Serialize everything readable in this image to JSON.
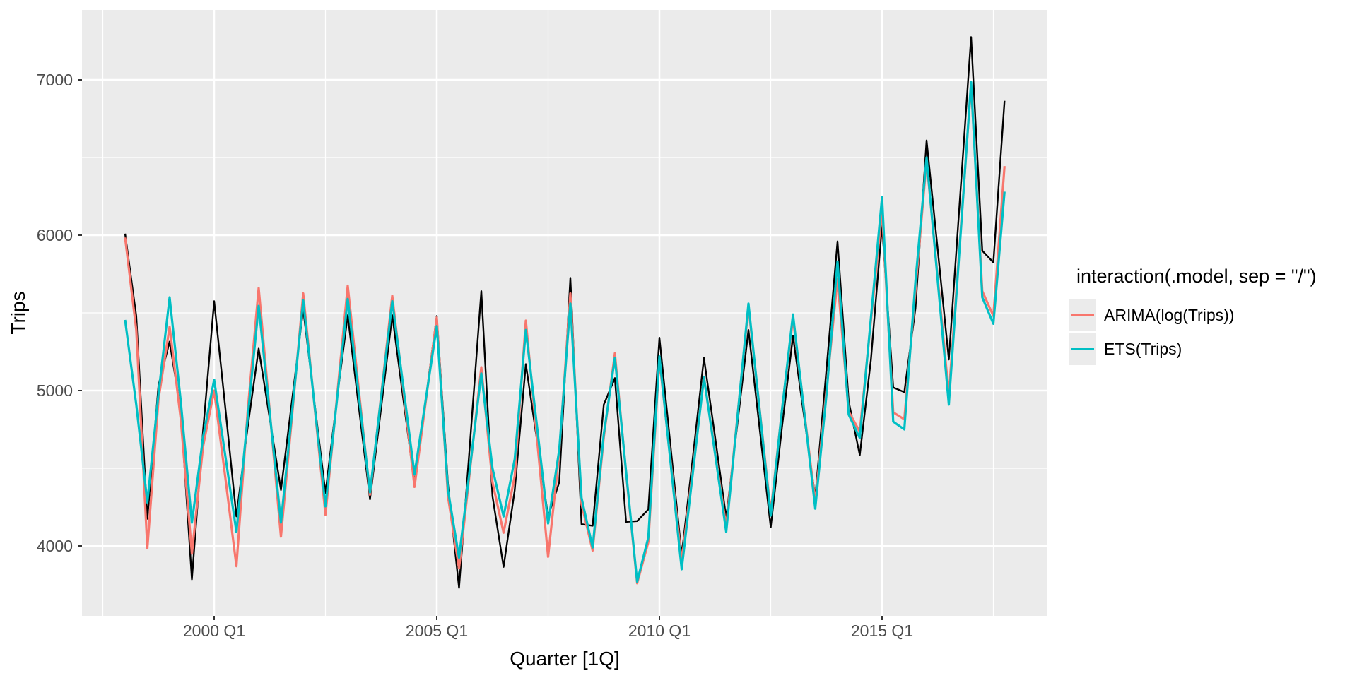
{
  "chart_data": {
    "type": "line",
    "xlabel": "Quarter [1Q]",
    "ylabel": "Trips",
    "panel_background": "#EBEBEB",
    "grid_color": "#FFFFFF",
    "tick_label_color": "#4D4D4D",
    "x_start": 1998.0,
    "x_step": 0.25,
    "x_range": [
      1997.03,
      2018.71
    ],
    "y_range": [
      3550,
      7450
    ],
    "x_ticks": [
      {
        "value": 2000.0,
        "label": "2000 Q1"
      },
      {
        "value": 2005.0,
        "label": "2005 Q1"
      },
      {
        "value": 2010.0,
        "label": "2010 Q1"
      },
      {
        "value": 2015.0,
        "label": "2015 Q1"
      }
    ],
    "y_ticks": [
      {
        "value": 4000,
        "label": "4000"
      },
      {
        "value": 5000,
        "label": "5000"
      },
      {
        "value": 6000,
        "label": "6000"
      },
      {
        "value": 7000,
        "label": "7000"
      }
    ],
    "x_minor_gridlines": [
      1997.5,
      2002.5,
      2007.5,
      2012.5,
      2017.5
    ],
    "y_minor_gridlines": [
      4500,
      5500,
      6500
    ],
    "legend": {
      "title": "interaction(.model, sep = \"/\")",
      "items": [
        {
          "label": "ARIMA(log(Trips))",
          "color": "#F8766D"
        },
        {
          "label": "ETS(Trips)",
          "color": "#00BFC4"
        }
      ]
    },
    "series": [
      {
        "name": "Trips",
        "color": "#000000",
        "width": 2.4,
        "values": [
          6010,
          5480,
          4175,
          5035,
          5315,
          4870,
          3785,
          4740,
          5575,
          4890,
          4190,
          4760,
          5270,
          4815,
          4360,
          4940,
          5525,
          4930,
          4340,
          4930,
          5485,
          4890,
          4300,
          4890,
          5485,
          4940,
          4400,
          4940,
          5480,
          4400,
          3730,
          4680,
          5640,
          4320,
          3865,
          4360,
          5170,
          4680,
          4190,
          4410,
          5725,
          4140,
          4130,
          4910,
          5080,
          4155,
          4160,
          4235,
          5340,
          4640,
          3940,
          4570,
          5210,
          4700,
          4180,
          4785,
          5390,
          4755,
          4120,
          4760,
          5350,
          4830,
          4310,
          5135,
          5960,
          4930,
          4585,
          5200,
          6065,
          5020,
          4990,
          5530,
          6610,
          5905,
          5200,
          6240,
          7275,
          5900,
          5825,
          6865
        ]
      },
      {
        "name": "ARIMA(log(Trips))",
        "color": "#F8766D",
        "width": 3.2,
        "values": [
          5985,
          5390,
          3985,
          4945,
          5410,
          4815,
          3950,
          4640,
          5000,
          4440,
          3870,
          4860,
          5660,
          4860,
          4060,
          4840,
          5625,
          4910,
          4200,
          4935,
          5675,
          5000,
          4330,
          4970,
          5610,
          5000,
          4380,
          4925,
          5470,
          4320,
          3855,
          4500,
          5150,
          4410,
          4085,
          4450,
          5450,
          4690,
          3930,
          4600,
          5625,
          4270,
          3970,
          4700,
          5240,
          4470,
          3760,
          4025,
          5200,
          4550,
          3900,
          4490,
          5085,
          4600,
          4125,
          4830,
          5540,
          4880,
          4215,
          4870,
          5465,
          4870,
          4280,
          5000,
          5720,
          4865,
          4735,
          5450,
          6160,
          4860,
          4815,
          5650,
          6480,
          5725,
          4970,
          5970,
          6970,
          5640,
          5480,
          6445
        ]
      },
      {
        "name": "ETS(Trips)",
        "color": "#00BFC4",
        "width": 3.2,
        "values": [
          5455,
          4910,
          4280,
          4980,
          5600,
          4930,
          4150,
          4700,
          5070,
          4580,
          4090,
          4820,
          5545,
          4850,
          4150,
          4865,
          5580,
          4915,
          4255,
          4920,
          5590,
          4965,
          4345,
          4960,
          5575,
          5020,
          4460,
          4940,
          5415,
          4360,
          3925,
          4515,
          5110,
          4500,
          4190,
          4560,
          5390,
          4770,
          4145,
          4620,
          5560,
          4310,
          3990,
          4720,
          5210,
          4480,
          3770,
          4055,
          5220,
          4535,
          3850,
          4470,
          5085,
          4590,
          4090,
          4825,
          5560,
          4875,
          4195,
          4870,
          5490,
          4865,
          4240,
          4970,
          5830,
          4845,
          4695,
          5470,
          6245,
          4800,
          4750,
          5705,
          6500,
          5705,
          4910,
          5950,
          6985,
          5600,
          5430,
          6280
        ]
      }
    ]
  }
}
